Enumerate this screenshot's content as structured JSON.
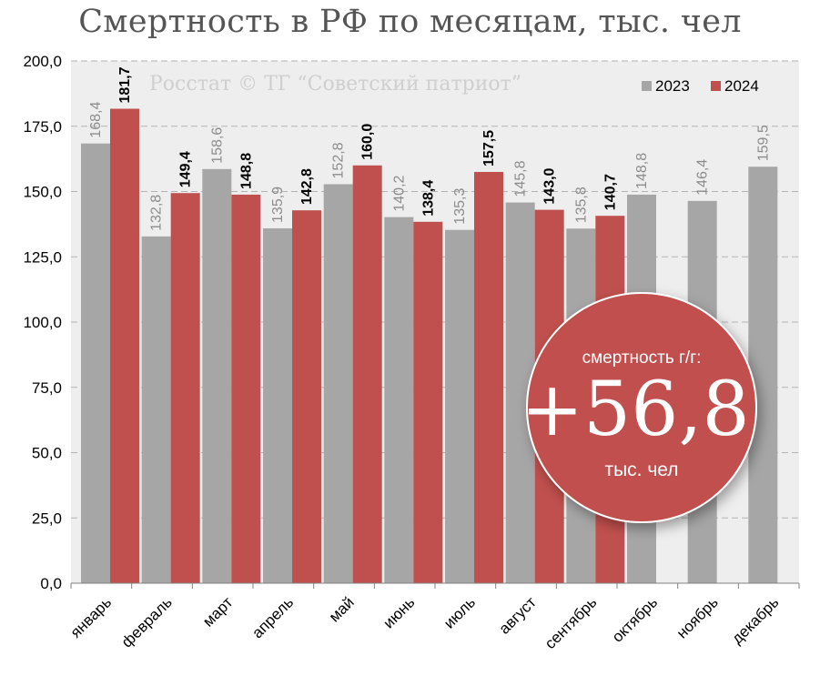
{
  "chart_data": {
    "type": "bar",
    "title": "Смертность в РФ по месяцам, тыс. чел",
    "subtitle": "Росстат © ТГ “Советский патриот”",
    "categories": [
      "январь",
      "февраль",
      "март",
      "апрель",
      "май",
      "июнь",
      "июль",
      "август",
      "сентябрь",
      "октябрь",
      "ноябрь",
      "декабрь"
    ],
    "series": [
      {
        "name": "2023",
        "color": "#a6a6a6",
        "values": [
          168.4,
          132.8,
          158.6,
          135.9,
          152.8,
          140.2,
          135.3,
          145.8,
          135.8,
          148.8,
          146.4,
          159.5
        ],
        "labels": [
          "168,4",
          "132,8",
          "158,6",
          "135,9",
          "152,8",
          "140,2",
          "135,3",
          "145,8",
          "135,8",
          "148,8",
          "146,4",
          "159,5"
        ]
      },
      {
        "name": "2024",
        "color": "#c0504d",
        "values": [
          181.7,
          149.4,
          148.8,
          142.8,
          160.0,
          138.4,
          157.5,
          143.0,
          140.7,
          null,
          null,
          null
        ],
        "labels": [
          "181,7",
          "149,4",
          "148,8",
          "142,8",
          "160,0",
          "138,4",
          "157,5",
          "143,0",
          "140,7",
          null,
          null,
          null
        ]
      }
    ],
    "ylim": [
      0,
      200
    ],
    "yticks": [
      0,
      25,
      50,
      75,
      100,
      125,
      150,
      175,
      200
    ],
    "ytick_labels": [
      "0,0",
      "25,0",
      "50,0",
      "75,0",
      "100,0",
      "125,0",
      "150,0",
      "175,0",
      "200,0"
    ],
    "xlabel": "",
    "ylabel": "",
    "grid": true,
    "legend": "top-right"
  },
  "callout": {
    "caption": "смертность г/г:",
    "value": "+56,8",
    "unit": "тыс. чел",
    "color": "#c0504d"
  }
}
